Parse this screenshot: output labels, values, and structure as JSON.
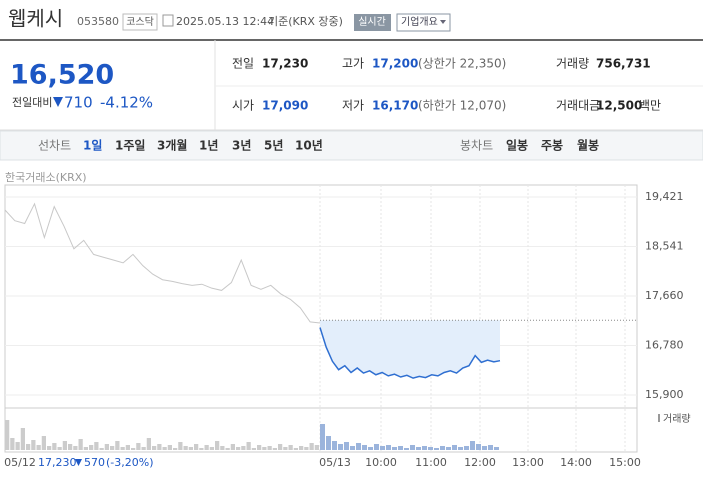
{
  "header": {
    "name": "웹케시",
    "code": "053580",
    "market": "코스닥",
    "datetime": "2025.05.13 12:44",
    "basis": "기준(KRX 장중)",
    "realtime": "실시간",
    "company_button": "기업개요"
  },
  "quote": {
    "price": "16,520",
    "change_label": "전일대비",
    "change": "710",
    "change_pct": "-4.12%"
  },
  "stats": [
    {
      "label": "전일",
      "value": "17,230"
    },
    {
      "label": "고가",
      "value": "17,200",
      "note": "(상한가 22,350)"
    },
    {
      "label": "거래량",
      "value": "756,731"
    },
    {
      "label": "시가",
      "value": "17,090"
    },
    {
      "label": "저가",
      "value": "16,170",
      "note": "(하한가 12,070)"
    },
    {
      "label": "거래대금",
      "value": "12,500",
      "unit": "백만"
    }
  ],
  "tabs": {
    "label": "선차트",
    "items": [
      "1일",
      "1주일",
      "3개월",
      "1년",
      "3년",
      "5년",
      "10년"
    ],
    "candle_label": "봉차트",
    "candle_items": [
      "일봉",
      "주봉",
      "월봉"
    ]
  },
  "chart": {
    "source": "한국거래소(KRX)",
    "volume_legend": "거래량",
    "ylim": [
      15900,
      19421
    ],
    "yticks": [
      {
        "value": 19421,
        "label": "19,421"
      },
      {
        "value": 18541,
        "label": "18,541"
      },
      {
        "value": 17660,
        "label": "17,660"
      },
      {
        "value": 16780,
        "label": "16,780"
      },
      {
        "value": 15900,
        "label": "15,900"
      }
    ],
    "ref_line": 17230,
    "xlabels": [
      "05/12",
      "05/13",
      "10:00",
      "11:00",
      "12:00",
      "13:00",
      "14:00",
      "15:00"
    ],
    "series": [
      {
        "name": "05/12",
        "color": "#c8c8c8",
        "values": [
          19190,
          19000,
          18950,
          19300,
          18700,
          19250,
          18900,
          18500,
          18650,
          18400,
          18350,
          18300,
          18250,
          18400,
          18200,
          18050,
          17950,
          17920,
          17880,
          17850,
          17870,
          17800,
          17760,
          17900,
          18300,
          17850,
          17780,
          17850,
          17700,
          17600,
          17450,
          17200,
          17180
        ]
      },
      {
        "name": "05/13",
        "color": "#2f6fd1",
        "values": [
          17100,
          16750,
          16500,
          16350,
          16420,
          16300,
          16380,
          16290,
          16330,
          16260,
          16300,
          16240,
          16270,
          16220,
          16250,
          16200,
          16230,
          16210,
          16260,
          16240,
          16300,
          16330,
          16290,
          16380,
          16420,
          16600,
          16480,
          16520,
          16490,
          16510
        ]
      }
    ],
    "vlim": [
      0,
      40
    ],
    "volume": [
      [
        30,
        12,
        8,
        22,
        6,
        10,
        5,
        14,
        4,
        7,
        3,
        9,
        6,
        4,
        11,
        3,
        5,
        8,
        2,
        6,
        4,
        9,
        3,
        5,
        2,
        7,
        3,
        12,
        4,
        6,
        3,
        5,
        2,
        8,
        4,
        3,
        6,
        2,
        5,
        3,
        9,
        4,
        2,
        6,
        3,
        4,
        8,
        2,
        5,
        3,
        4,
        2,
        6,
        3,
        5,
        2,
        4,
        3,
        7,
        5
      ],
      [
        26,
        14,
        9,
        6,
        8,
        4,
        7,
        5,
        3,
        6,
        4,
        5,
        3,
        4,
        2,
        5,
        3,
        4,
        3,
        2,
        4,
        3,
        5,
        3,
        4,
        9,
        6,
        4,
        5,
        3
      ]
    ],
    "summary": {
      "price": "17,230",
      "change": "570",
      "pct": "(-3,20%)"
    }
  }
}
